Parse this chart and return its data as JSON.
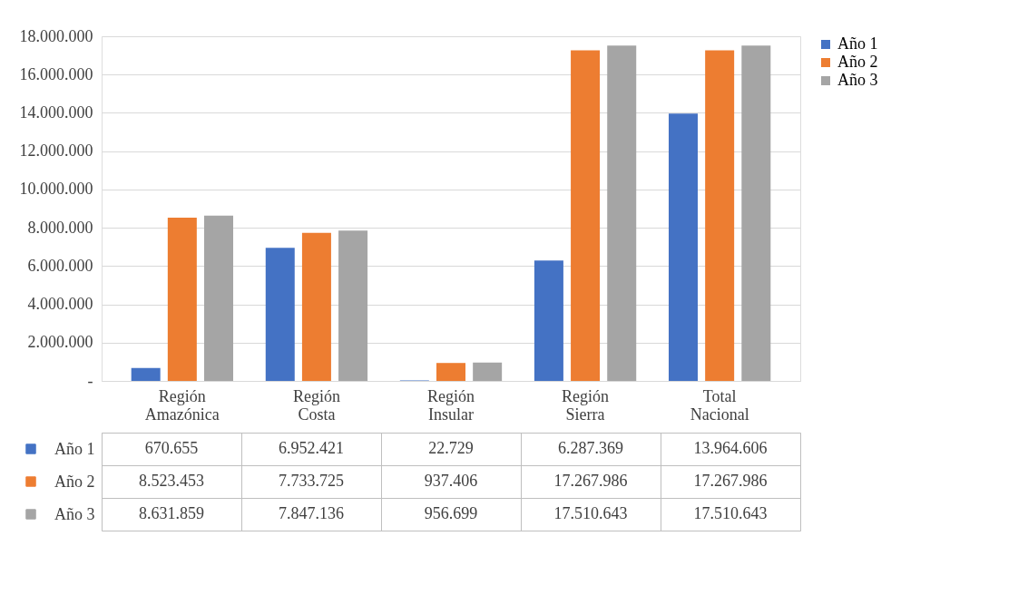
{
  "chart_data": {
    "type": "bar",
    "categories": [
      "Región Amazónica",
      "Región Costa",
      "Región Insular",
      "Región Sierra",
      "Total Nacional"
    ],
    "series": [
      {
        "name": "Año 1",
        "color": "#4472c4",
        "values": [
          670655,
          6952421,
          22729,
          6287369,
          13964606
        ],
        "value_labels": [
          "670.655",
          "6.952.421",
          "22.729",
          "6.287.369",
          "13.964.606"
        ]
      },
      {
        "name": "Año 2",
        "color": "#ed7d31",
        "values": [
          8523453,
          7733725,
          937406,
          17267986,
          17267986
        ],
        "value_labels": [
          "8.523.453",
          "7.733.725",
          "937.406",
          "17.267.986",
          "17.267.986"
        ]
      },
      {
        "name": "Año 3",
        "color": "#a5a5a5",
        "values": [
          8631859,
          7847136,
          956699,
          17510643,
          17510643
        ],
        "value_labels": [
          "8.631.859",
          "7.847.136",
          "956.699",
          "17.510.643",
          "17.510.643"
        ]
      }
    ],
    "ylim": [
      0,
      18000000
    ],
    "yticks": [
      {
        "value": 0,
        "label": "-"
      },
      {
        "value": 2000000,
        "label": "2.000.000"
      },
      {
        "value": 4000000,
        "label": "4.000.000"
      },
      {
        "value": 6000000,
        "label": "6.000.000"
      },
      {
        "value": 8000000,
        "label": "8.000.000"
      },
      {
        "value": 10000000,
        "label": "10.000.000"
      },
      {
        "value": 12000000,
        "label": "12.000.000"
      },
      {
        "value": 14000000,
        "label": "14.000.000"
      },
      {
        "value": 16000000,
        "label": "16.000.000"
      },
      {
        "value": 18000000,
        "label": "18.000.000"
      }
    ],
    "grid": "y",
    "legend": "right"
  }
}
